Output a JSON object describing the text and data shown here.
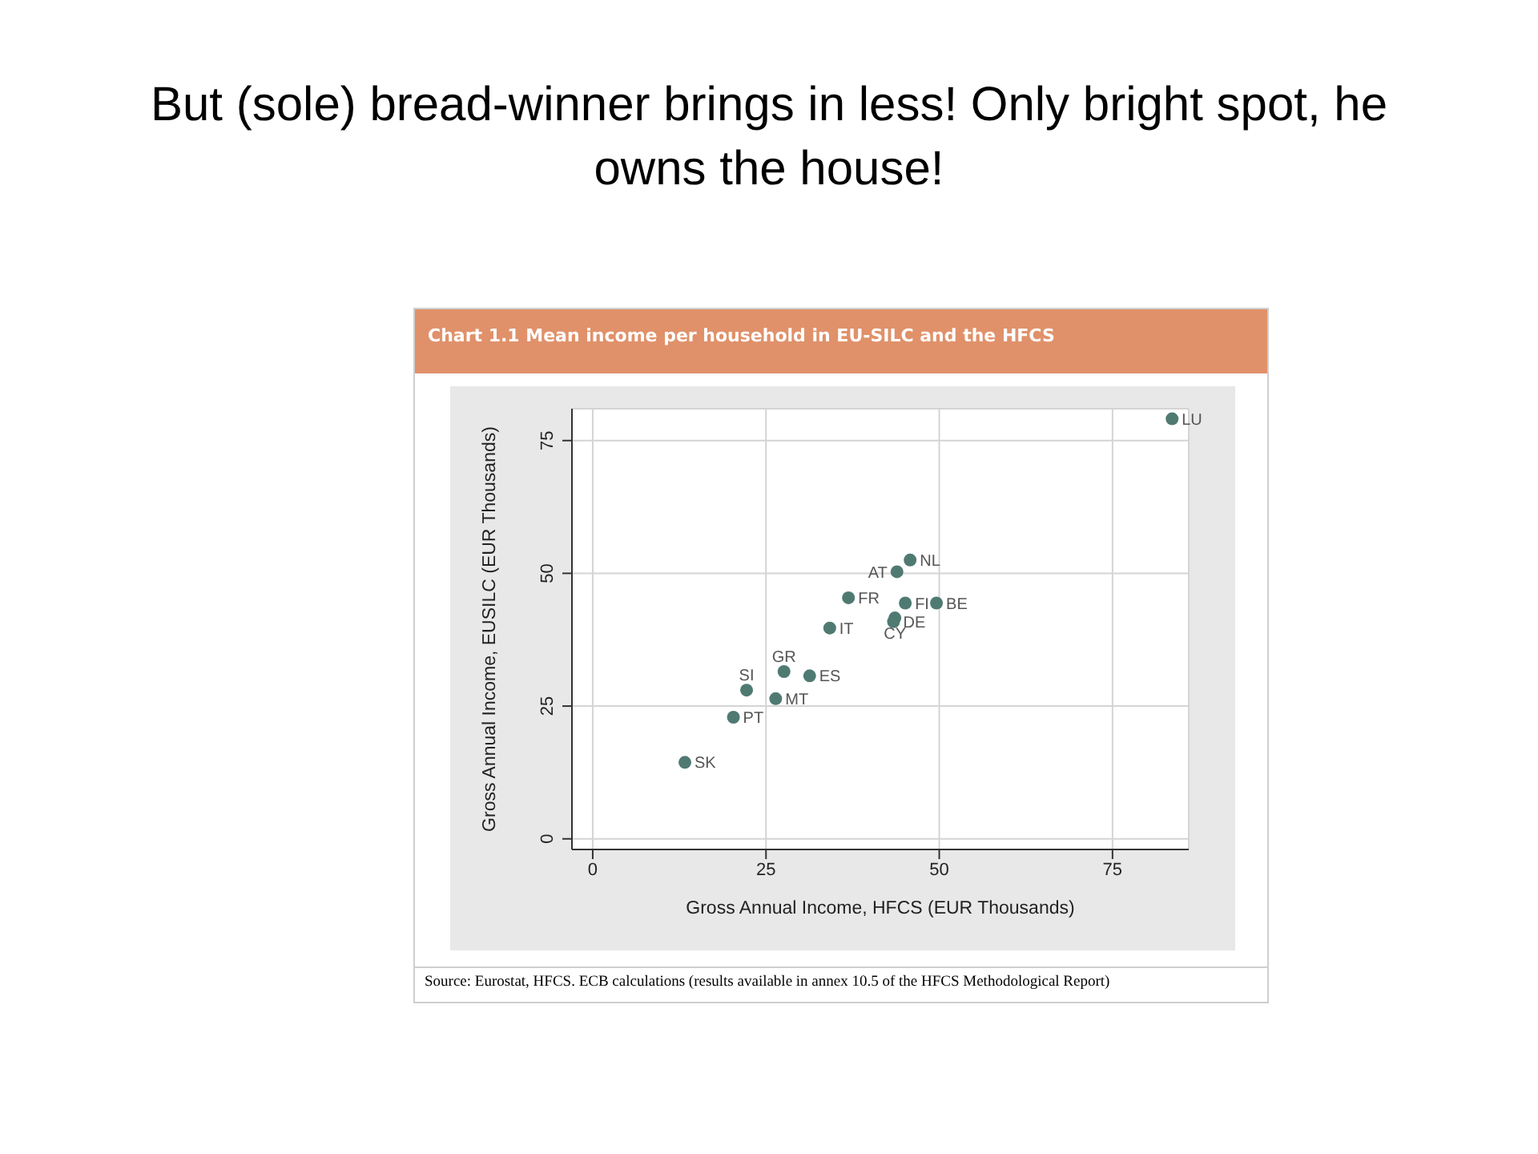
{
  "chart_data": {
    "type": "scatter",
    "title": "But (sole) bread-winner brings in less! Only bright spot, he owns the house!",
    "subtitle": "Chart 1.1  Mean income per household in EU-SILC and the HFCS",
    "xlabel": "Gross Annual Income, HFCS (EUR Thousands)",
    "ylabel": "Gross Annual Income, EUSILC (EUR Thousands)",
    "x": [
      83.6,
      45.8,
      43.9,
      36.9,
      45.1,
      49.6,
      43.6,
      43.4,
      34.2,
      27.6,
      31.3,
      22.2,
      26.4,
      20.3,
      13.3
    ],
    "series": [
      {
        "color": "#4f7a72",
        "values": [
          79.1,
          52.5,
          50.3,
          45.4,
          44.4,
          44.4,
          41.6,
          40.9,
          39.7,
          31.5,
          30.7,
          28.0,
          26.4,
          22.9,
          14.4
        ]
      }
    ],
    "xlim": [
      -3,
      86
    ],
    "ylim": [
      -2,
      81
    ],
    "xticks": [
      0,
      25,
      50,
      75
    ],
    "yticks": [
      0,
      25,
      50,
      75
    ],
    "grid": true,
    "marker": "circle",
    "annotations": [
      {
        "text": "LU",
        "x": 83.6,
        "y": 79.1
      },
      {
        "text": "NL",
        "x": 45.8,
        "y": 52.5
      },
      {
        "text": "AT",
        "x": 43.9,
        "y": 50.3
      },
      {
        "text": "FR",
        "x": 36.9,
        "y": 45.4
      },
      {
        "text": "FI",
        "x": 45.1,
        "y": 44.4
      },
      {
        "text": "BE",
        "x": 49.6,
        "y": 44.4
      },
      {
        "text": "CY",
        "x": 43.6,
        "y": 41.6
      },
      {
        "text": "DE",
        "x": 43.4,
        "y": 40.9
      },
      {
        "text": "IT",
        "x": 34.2,
        "y": 39.7
      },
      {
        "text": "GR",
        "x": 27.6,
        "y": 31.5
      },
      {
        "text": "ES",
        "x": 31.3,
        "y": 30.7
      },
      {
        "text": "SI",
        "x": 22.2,
        "y": 28.0
      },
      {
        "text": "MT",
        "x": 26.4,
        "y": 26.4
      },
      {
        "text": "PT",
        "x": 20.3,
        "y": 22.9
      },
      {
        "text": "SK",
        "x": 13.3,
        "y": 14.4
      },
      "Source: Eurostat, HFCS. ECB calculations (results available in annex 10.5 of the HFCS Methodological Report)"
    ]
  }
}
